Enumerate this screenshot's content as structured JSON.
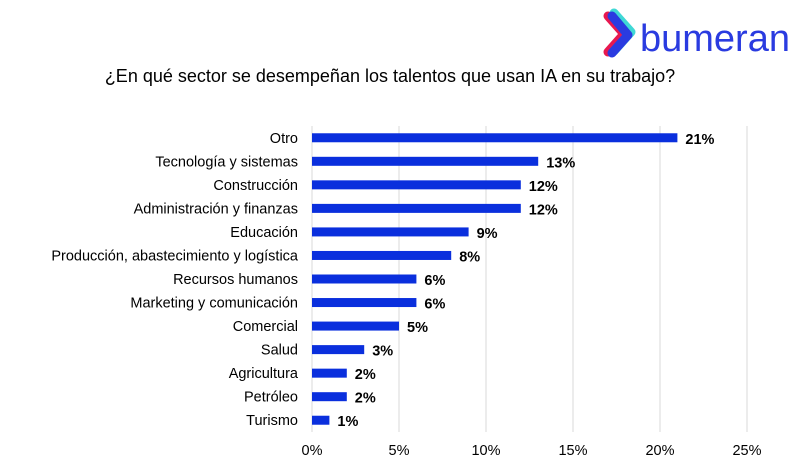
{
  "brand": {
    "logo_text": "bumeran",
    "logo_color": "#2a3be0"
  },
  "chart_data": {
    "type": "bar",
    "orientation": "horizontal",
    "title": "¿En qué sector se desempeñan los talentos que usan IA en su trabajo?",
    "categories": [
      "Otro",
      "Tecnología y sistemas",
      "Construcción",
      "Administración y finanzas",
      "Educación",
      "Producción, abastecimiento y logística",
      "Recursos humanos",
      "Marketing y comunicación",
      "Comercial",
      "Salud",
      "Agricultura",
      "Petróleo",
      "Turismo"
    ],
    "values": [
      21,
      13,
      12,
      12,
      9,
      8,
      6,
      6,
      5,
      3,
      2,
      2,
      1
    ],
    "data_labels": [
      "21%",
      "13%",
      "12%",
      "12%",
      "9%",
      "8%",
      "6%",
      "6%",
      "5%",
      "3%",
      "2%",
      "2%",
      "1%"
    ],
    "xlim": [
      0,
      25
    ],
    "x_ticks": [
      0,
      5,
      10,
      15,
      20,
      25
    ],
    "x_tick_labels": [
      "0%",
      "5%",
      "10%",
      "15%",
      "20%",
      "25%"
    ],
    "xlabel": "",
    "ylabel": "",
    "grid": "vertical",
    "legend": "none",
    "bar_color": "#0a2fdd"
  }
}
